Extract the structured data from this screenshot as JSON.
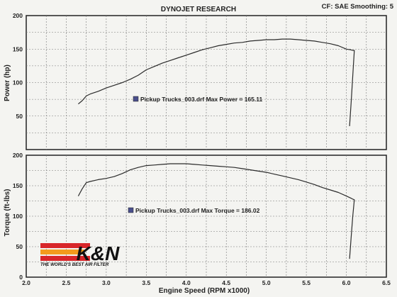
{
  "header": {
    "title": "DYNOJET RESEARCH",
    "right_text": "CF: SAE  Smoothing: 5"
  },
  "logo": {
    "brand": "K&N",
    "tagline": "THE WORLD'S BEST AIR FILTER",
    "colors": {
      "red": "#d8262a",
      "orange": "#f39b1e",
      "black": "#111111"
    }
  },
  "colors": {
    "background": "#f4f4f1",
    "curve": "#2b2b2b",
    "grid": "#777777",
    "frame": "#222222"
  },
  "chart_data": [
    {
      "type": "line",
      "ylabel": "Power (hp)",
      "xlabel": "",
      "xlim": [
        2.0,
        6.5
      ],
      "ylim": [
        0,
        200
      ],
      "y_ticks": [
        50,
        100,
        150,
        200
      ],
      "grid": true,
      "annotation": "Pickup Trucks_003.drf Max Power = 165.11",
      "series": [
        {
          "x": [
            2.65,
            2.7,
            2.75,
            2.8,
            2.9,
            3.0,
            3.1,
            3.2,
            3.3,
            3.4,
            3.5,
            3.6,
            3.7,
            3.8,
            3.9,
            4.0,
            4.1,
            4.2,
            4.3,
            4.4,
            4.5,
            4.6,
            4.7,
            4.8,
            4.9,
            5.0,
            5.1,
            5.2,
            5.3,
            5.4,
            5.5,
            5.6,
            5.7,
            5.8,
            5.9,
            6.0,
            6.05,
            6.08,
            6.1,
            6.08,
            6.06,
            6.04
          ],
          "values": [
            68,
            73,
            80,
            83,
            87,
            92,
            96,
            100,
            105,
            111,
            119,
            124,
            129,
            133,
            137,
            141,
            145,
            149,
            152,
            155,
            157,
            159,
            160,
            162,
            163,
            164,
            164,
            165,
            165,
            164,
            163,
            162,
            160,
            158,
            155,
            150,
            149,
            148,
            148,
            110,
            70,
            35
          ]
        }
      ]
    },
    {
      "type": "line",
      "ylabel": "Torque (ft-lbs)",
      "xlabel": "Engine Speed (RPM x1000)",
      "xlim": [
        2.0,
        6.5
      ],
      "ylim": [
        0,
        200
      ],
      "x_ticks": [
        2.0,
        2.5,
        3.0,
        3.5,
        4.0,
        4.5,
        5.0,
        5.5,
        6.0,
        6.5
      ],
      "x_tick_labels": [
        "2.0",
        "2.5",
        "3.0",
        "3.5",
        "4.0",
        "4.5",
        "5.0",
        "5.5",
        "6.0",
        "6.5"
      ],
      "y_ticks": [
        0,
        50,
        100,
        150,
        200
      ],
      "grid": true,
      "annotation": "Pickup Trucks_003.drf Max Torque = 186.02",
      "series": [
        {
          "x": [
            2.65,
            2.7,
            2.75,
            2.8,
            2.9,
            3.0,
            3.1,
            3.2,
            3.3,
            3.4,
            3.5,
            3.6,
            3.7,
            3.8,
            3.9,
            4.0,
            4.1,
            4.2,
            4.3,
            4.4,
            4.5,
            4.6,
            4.7,
            4.8,
            4.9,
            5.0,
            5.1,
            5.2,
            5.3,
            5.4,
            5.5,
            5.6,
            5.7,
            5.8,
            5.9,
            6.0,
            6.05,
            6.08,
            6.1,
            6.08,
            6.06,
            6.04
          ],
          "values": [
            133,
            145,
            155,
            157,
            160,
            162,
            165,
            170,
            176,
            180,
            183,
            184,
            185,
            186,
            186,
            186,
            185,
            184,
            183,
            182,
            181,
            180,
            178,
            176,
            174,
            172,
            169,
            166,
            163,
            160,
            156,
            152,
            147,
            143,
            139,
            133,
            130,
            128,
            127,
            100,
            65,
            30
          ]
        }
      ]
    }
  ]
}
